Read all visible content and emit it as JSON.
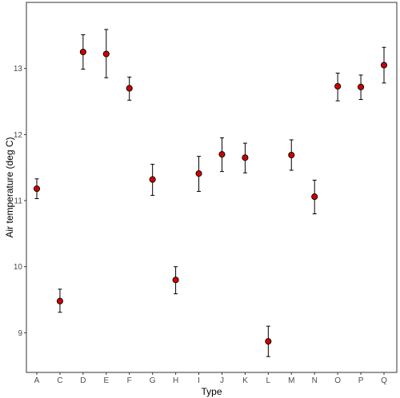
{
  "chart_data": {
    "type": "scatter",
    "xlabel": "Type",
    "ylabel": "Air temperature (deg C)",
    "ylim": [
      8.4,
      14.0
    ],
    "yticks": [
      9,
      10,
      11,
      12,
      13
    ],
    "grid": false,
    "categories": [
      "A",
      "C",
      "D",
      "E",
      "F",
      "G",
      "H",
      "I",
      "J",
      "K",
      "L",
      "M",
      "N",
      "O",
      "P",
      "Q"
    ],
    "points": [
      {
        "x": "A",
        "y": 11.18,
        "lower": 11.03,
        "upper": 11.33
      },
      {
        "x": "C",
        "y": 9.48,
        "lower": 9.31,
        "upper": 9.66
      },
      {
        "x": "D",
        "y": 13.25,
        "lower": 12.99,
        "upper": 13.51
      },
      {
        "x": "E",
        "y": 13.22,
        "lower": 12.86,
        "upper": 13.59
      },
      {
        "x": "F",
        "y": 12.7,
        "lower": 12.52,
        "upper": 12.87
      },
      {
        "x": "G",
        "y": 11.32,
        "lower": 11.08,
        "upper": 11.55
      },
      {
        "x": "H",
        "y": 9.8,
        "lower": 9.59,
        "upper": 10.0
      },
      {
        "x": "I",
        "y": 11.41,
        "lower": 11.14,
        "upper": 11.67
      },
      {
        "x": "J",
        "y": 11.7,
        "lower": 11.44,
        "upper": 11.95
      },
      {
        "x": "K",
        "y": 11.65,
        "lower": 11.42,
        "upper": 11.87
      },
      {
        "x": "L",
        "y": 8.87,
        "lower": 8.64,
        "upper": 9.1
      },
      {
        "x": "M",
        "y": 11.69,
        "lower": 11.46,
        "upper": 11.92
      },
      {
        "x": "N",
        "y": 11.06,
        "lower": 10.8,
        "upper": 11.31
      },
      {
        "x": "O",
        "y": 12.73,
        "lower": 12.51,
        "upper": 12.93
      },
      {
        "x": "P",
        "y": 12.72,
        "lower": 12.53,
        "upper": 12.9
      },
      {
        "x": "Q",
        "y": 13.05,
        "lower": 12.78,
        "upper": 13.32
      }
    ],
    "colors": {
      "point_fill": "#cc0000",
      "point_stroke": "#000000",
      "errorbar": "#000000",
      "panel_border": "#333333"
    }
  }
}
